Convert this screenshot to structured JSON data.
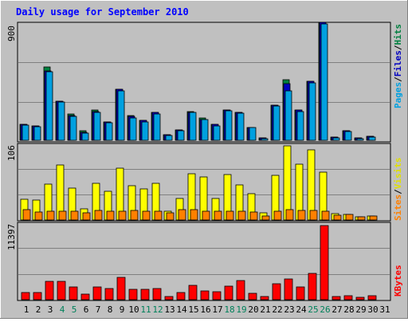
{
  "chart_data": [
    {
      "type": "bar",
      "title": "Daily usage for September 2010",
      "panel": "top",
      "categories": [
        "1",
        "2",
        "3",
        "4",
        "5",
        "6",
        "7",
        "8",
        "9",
        "10",
        "11",
        "12",
        "13",
        "14",
        "15",
        "16",
        "17",
        "18",
        "19",
        "20",
        "21",
        "22",
        "23",
        "24",
        "25",
        "26",
        "27",
        "28",
        "29",
        "30",
        "31"
      ],
      "ylim": [
        0,
        900
      ],
      "ytick_label": "900",
      "right_labels": [
        {
          "text": "Pages",
          "color": "#00a0e0"
        },
        {
          "text": "Files",
          "color": "#0000c0"
        },
        {
          "text": "Hits",
          "color": "#008040"
        }
      ],
      "series": [
        {
          "name": "Hits",
          "color": "#008040",
          "values": [
            120,
            110,
            560,
            300,
            200,
            70,
            230,
            140,
            390,
            190,
            150,
            210,
            40,
            80,
            220,
            170,
            120,
            230,
            210,
            100,
            20,
            270,
            460,
            230,
            450,
            900,
            25,
            70,
            20,
            30,
            0
          ]
        },
        {
          "name": "Files",
          "color": "#0000c0",
          "values": [
            120,
            110,
            530,
            300,
            190,
            60,
            220,
            140,
            390,
            180,
            150,
            210,
            40,
            80,
            210,
            160,
            120,
            230,
            210,
            100,
            20,
            270,
            430,
            230,
            450,
            900,
            25,
            70,
            20,
            30,
            0
          ]
        },
        {
          "name": "Pages",
          "color": "#00a0e0",
          "values": [
            115,
            105,
            520,
            290,
            180,
            55,
            215,
            135,
            380,
            170,
            140,
            200,
            35,
            75,
            210,
            160,
            110,
            225,
            205,
            95,
            15,
            260,
            380,
            220,
            440,
            890,
            20,
            65,
            15,
            25,
            0
          ]
        }
      ]
    },
    {
      "type": "bar",
      "panel": "middle",
      "categories": [
        "1",
        "2",
        "3",
        "4",
        "5",
        "6",
        "7",
        "8",
        "9",
        "10",
        "11",
        "12",
        "13",
        "14",
        "15",
        "16",
        "17",
        "18",
        "19",
        "20",
        "21",
        "22",
        "23",
        "24",
        "25",
        "26",
        "27",
        "28",
        "29",
        "30",
        "31"
      ],
      "ylim": [
        0,
        106
      ],
      "ytick_label": "106",
      "right_labels": [
        {
          "text": "Sites",
          "color": "#ff8000"
        },
        {
          "text": "Visits",
          "color": "#e0e000"
        }
      ],
      "series": [
        {
          "name": "Visits",
          "color": "#ffff00",
          "values": [
            30,
            29,
            51,
            79,
            46,
            16,
            52,
            41,
            74,
            49,
            45,
            52,
            12,
            31,
            66,
            61,
            31,
            65,
            50,
            38,
            10,
            64,
            106,
            80,
            100,
            68,
            9,
            8,
            4,
            6,
            0
          ]
        },
        {
          "name": "Sites",
          "color": "#ff8000",
          "values": [
            15,
            11,
            13,
            12,
            12,
            10,
            14,
            13,
            12,
            14,
            12,
            13,
            10,
            15,
            15,
            13,
            13,
            13,
            12,
            11,
            6,
            13,
            15,
            14,
            14,
            13,
            7,
            8,
            4,
            6,
            0
          ]
        }
      ]
    },
    {
      "type": "bar",
      "panel": "bottom",
      "categories": [
        "1",
        "2",
        "3",
        "4",
        "5",
        "6",
        "7",
        "8",
        "9",
        "10",
        "11",
        "12",
        "13",
        "14",
        "15",
        "16",
        "17",
        "18",
        "19",
        "20",
        "21",
        "22",
        "23",
        "24",
        "25",
        "26",
        "27",
        "28",
        "29",
        "30",
        "31"
      ],
      "ylim": [
        0,
        11397
      ],
      "ytick_label": "11397",
      "right_labels": [
        {
          "text": "KBytes",
          "color": "#ff0000"
        }
      ],
      "series": [
        {
          "name": "KBytes",
          "color": "#ff0000",
          "values": [
            1100,
            1100,
            2800,
            2800,
            1900,
            800,
            1900,
            1700,
            3400,
            1600,
            1600,
            1700,
            500,
            1100,
            2200,
            1300,
            1200,
            2100,
            2900,
            1000,
            500,
            2400,
            3200,
            2000,
            4100,
            11397,
            500,
            600,
            400,
            600,
            0
          ]
        }
      ]
    }
  ],
  "x_labels": [
    {
      "text": "1",
      "color": "#000000"
    },
    {
      "text": "2",
      "color": "#000000"
    },
    {
      "text": "3",
      "color": "#000000"
    },
    {
      "text": "4",
      "color": "#00805a"
    },
    {
      "text": "5",
      "color": "#00805a"
    },
    {
      "text": "6",
      "color": "#000000"
    },
    {
      "text": "7",
      "color": "#000000"
    },
    {
      "text": "8",
      "color": "#000000"
    },
    {
      "text": "9",
      "color": "#000000"
    },
    {
      "text": "10",
      "color": "#000000"
    },
    {
      "text": "11",
      "color": "#00805a"
    },
    {
      "text": "12",
      "color": "#00805a"
    },
    {
      "text": "13",
      "color": "#000000"
    },
    {
      "text": "14",
      "color": "#000000"
    },
    {
      "text": "15",
      "color": "#000000"
    },
    {
      "text": "16",
      "color": "#000000"
    },
    {
      "text": "17",
      "color": "#000000"
    },
    {
      "text": "18",
      "color": "#00805a"
    },
    {
      "text": "19",
      "color": "#00805a"
    },
    {
      "text": "20",
      "color": "#000000"
    },
    {
      "text": "21",
      "color": "#000000"
    },
    {
      "text": "22",
      "color": "#000000"
    },
    {
      "text": "23",
      "color": "#000000"
    },
    {
      "text": "24",
      "color": "#000000"
    },
    {
      "text": "25",
      "color": "#00805a"
    },
    {
      "text": "26",
      "color": "#00805a"
    },
    {
      "text": "27",
      "color": "#000000"
    },
    {
      "text": "28",
      "color": "#000000"
    },
    {
      "text": "29",
      "color": "#000000"
    },
    {
      "text": "30",
      "color": "#000000"
    },
    {
      "text": "31",
      "color": "#000000"
    }
  ],
  "colors": {
    "frame": "#c0c0c0",
    "plot_background": "#c0c0c0",
    "title": "#0000ff",
    "gridline": "#808080"
  }
}
